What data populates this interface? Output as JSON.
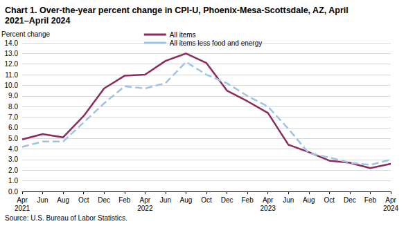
{
  "chart_data": {
    "type": "line",
    "title": "Chart 1. Over-the-year percent change in CPI-U, Phoenix-Mesa-Scottsdale, AZ, April 2021–April 2024",
    "y_label": "Percent change",
    "source": "Source: U.S. Bureau of Labor Statistics.",
    "categories": [
      "Apr\n2021",
      "Jun",
      "Aug",
      "Oct",
      "Dec",
      "Feb",
      "Apr\n2022",
      "Jun",
      "Aug",
      "Oct",
      "Dec",
      "Feb",
      "Apr\n2023",
      "Jun",
      "Aug",
      "Oct",
      "Dec",
      "Feb",
      "Apr\n2024"
    ],
    "series": [
      {
        "name": "All items",
        "color": "#8c2a5b",
        "line_style": "solid",
        "marker": "none",
        "values": [
          4.9,
          5.4,
          5.1,
          7.1,
          9.7,
          10.9,
          11.0,
          12.3,
          13.0,
          12.1,
          9.5,
          8.5,
          7.4,
          4.4,
          3.7,
          2.9,
          2.7,
          2.2,
          2.6
        ]
      },
      {
        "name": "All items less food and energy",
        "color": "#9dc3e6",
        "line_style": "dashed",
        "marker": "none",
        "values": [
          4.2,
          4.7,
          4.7,
          6.5,
          8.3,
          9.9,
          9.7,
          10.2,
          12.2,
          11.0,
          10.2,
          9.0,
          8.0,
          5.9,
          3.6,
          3.2,
          2.7,
          2.5,
          3.0
        ]
      }
    ],
    "ylim": [
      0,
      14
    ],
    "yticks": [
      {
        "value": 0,
        "label": "0.0"
      },
      {
        "value": 1,
        "label": "1.0"
      },
      {
        "value": 2,
        "label": "2.0"
      },
      {
        "value": 3,
        "label": "3.0"
      },
      {
        "value": 4,
        "label": "4.0"
      },
      {
        "value": 5,
        "label": "5.0"
      },
      {
        "value": 6,
        "label": "6.0"
      },
      {
        "value": 7,
        "label": "7.0"
      },
      {
        "value": 8,
        "label": "8.0"
      },
      {
        "value": 9,
        "label": "9.0"
      },
      {
        "value": 10,
        "label": "10.0"
      },
      {
        "value": 11,
        "label": "11.0"
      },
      {
        "value": 12,
        "label": "12.0"
      },
      {
        "value": 13,
        "label": "13.0"
      },
      {
        "value": 14,
        "label": "14.0"
      }
    ],
    "grid": true,
    "legend": "top"
  }
}
